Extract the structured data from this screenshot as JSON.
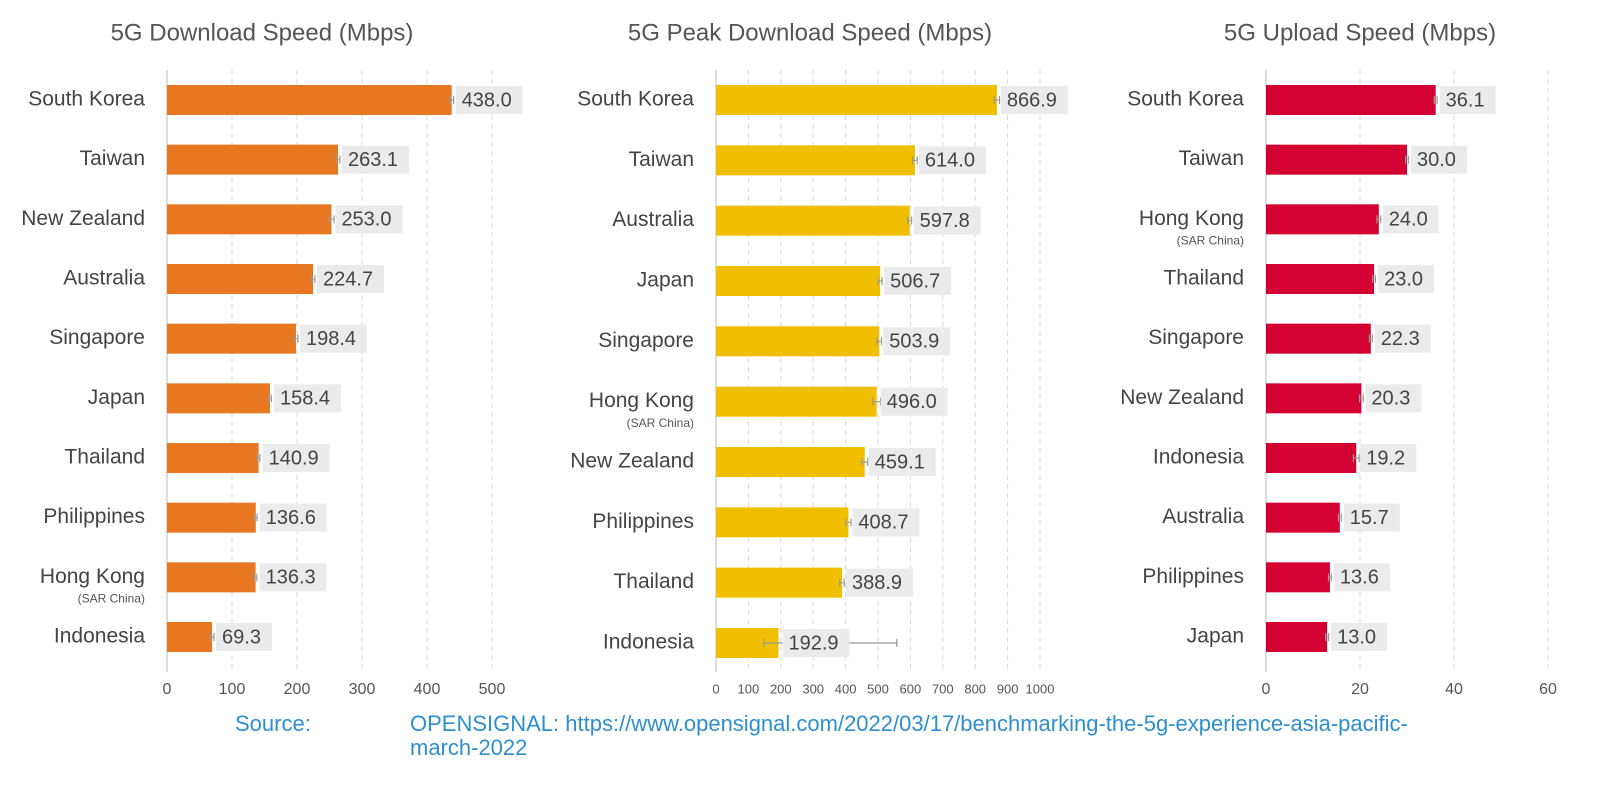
{
  "chart_data": [
    {
      "type": "barh",
      "title": "5G Download Speed (Mbps)",
      "categories": [
        "South Korea",
        "Taiwan",
        "New Zealand",
        "Australia",
        "Singapore",
        "Japan",
        "Thailand",
        "Philippines",
        "Hong Kong",
        "Indonesia"
      ],
      "category_notes": [
        null,
        null,
        null,
        null,
        null,
        null,
        null,
        null,
        "(SAR China)",
        null
      ],
      "values": [
        438.0,
        263.1,
        253.0,
        224.7,
        198.4,
        158.4,
        140.9,
        136.6,
        136.3,
        69.3
      ],
      "value_labels": [
        "438.0",
        "263.1",
        "253.0",
        "224.7",
        "198.4",
        "158.4",
        "140.9",
        "136.6",
        "136.3",
        "69.3"
      ],
      "errors": [
        3,
        3,
        4,
        3,
        3,
        2,
        2,
        2,
        2,
        3
      ],
      "color": "#e87722",
      "xlim": [
        0,
        500
      ],
      "xticks": [
        0,
        100,
        200,
        300,
        400,
        500
      ],
      "grid": true
    },
    {
      "type": "barh",
      "title": "5G Peak Download Speed (Mbps)",
      "categories": [
        "South Korea",
        "Taiwan",
        "Australia",
        "Japan",
        "Singapore",
        "Hong Kong",
        "New Zealand",
        "Philippines",
        "Thailand",
        "Indonesia"
      ],
      "category_notes": [
        null,
        null,
        null,
        null,
        null,
        "(SAR China)",
        null,
        null,
        null,
        null
      ],
      "values": [
        866.9,
        614.0,
        597.8,
        506.7,
        503.9,
        496.0,
        459.1,
        408.7,
        388.9,
        192.9
      ],
      "value_labels": [
        "866.9",
        "614.0",
        "597.8",
        "506.7",
        "503.9",
        "496.0",
        "459.1",
        "408.7",
        "388.9",
        "192.9"
      ],
      "errors_low": [
        8,
        7,
        6,
        6,
        7,
        12,
        9,
        8,
        7,
        45
      ],
      "errors_high": [
        8,
        7,
        6,
        6,
        7,
        12,
        9,
        8,
        7,
        365
      ],
      "color": "#f0bf00",
      "xlim": [
        0,
        1000
      ],
      "xticks": [
        0,
        100,
        200,
        300,
        400,
        500,
        600,
        700,
        800,
        900,
        1000
      ],
      "grid": true
    },
    {
      "type": "barh",
      "title": "5G Upload Speed (Mbps)",
      "categories": [
        "South Korea",
        "Taiwan",
        "Hong Kong",
        "Thailand",
        "Singapore",
        "New Zealand",
        "Indonesia",
        "Australia",
        "Philippines",
        "Japan"
      ],
      "category_notes": [
        null,
        null,
        "(SAR China)",
        null,
        null,
        null,
        null,
        null,
        null,
        null
      ],
      "values": [
        36.1,
        30.0,
        24.0,
        23.0,
        22.3,
        20.3,
        19.2,
        15.7,
        13.6,
        13.0
      ],
      "value_labels": [
        "36.1",
        "30.0",
        "24.0",
        "23.0",
        "22.3",
        "20.3",
        "19.2",
        "15.7",
        "13.6",
        "13.0"
      ],
      "errors": [
        0.3,
        0.3,
        0.4,
        0.3,
        0.3,
        0.4,
        0.6,
        0.3,
        0.3,
        0.3
      ],
      "color": "#d50032",
      "xlim": [
        0,
        60
      ],
      "xticks": [
        0,
        20,
        40,
        60
      ],
      "grid": true
    }
  ],
  "source": {
    "label": "Source:",
    "text": "OPENSIGNAL: https://www.opensignal.com/2022/03/17/benchmarking-the-5g-experience-asia-pacific-march-2022"
  }
}
